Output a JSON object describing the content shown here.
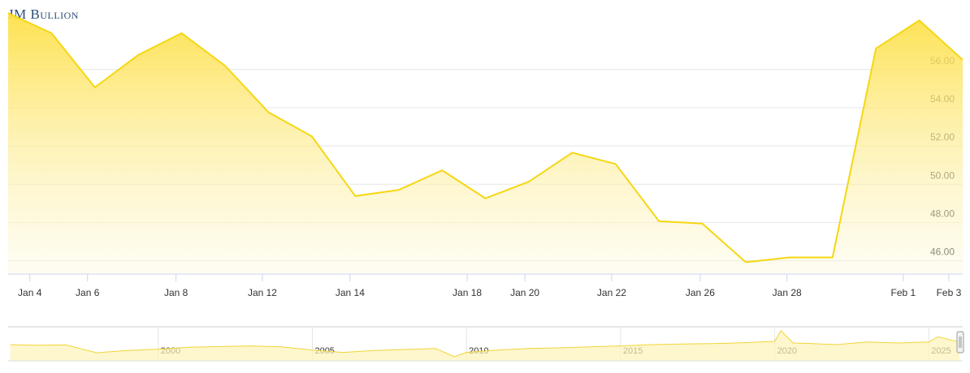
{
  "logo": "JM Bullion",
  "chart_data": [
    {
      "type": "area",
      "color": "#f5d712",
      "grid": true,
      "x": [
        0,
        1,
        2,
        3,
        4,
        5,
        6,
        7,
        8,
        9,
        10,
        11,
        12,
        13,
        14,
        15,
        16,
        17,
        18,
        19,
        20,
        21,
        22
      ],
      "values": [
        58.95,
        57.9,
        55.07,
        56.76,
        57.9,
        56.2,
        53.76,
        52.5,
        49.38,
        49.7,
        50.73,
        49.26,
        50.13,
        51.65,
        51.06,
        48.07,
        47.94,
        45.92,
        46.17,
        46.17,
        57.1,
        58.57,
        56.5
      ],
      "xlim": [
        0,
        22
      ],
      "xticks": [
        {
          "value": 0.5,
          "label": "Jan 4"
        },
        {
          "value": 1.83,
          "label": "Jan 6"
        },
        {
          "value": 3.87,
          "label": "Jan 8"
        },
        {
          "value": 5.86,
          "label": "Jan 12"
        },
        {
          "value": 7.88,
          "label": "Jan 14"
        },
        {
          "value": 10.58,
          "label": "Jan 18"
        },
        {
          "value": 11.91,
          "label": "Jan 20"
        },
        {
          "value": 13.91,
          "label": "Jan 22"
        },
        {
          "value": 15.95,
          "label": "Jan 26"
        },
        {
          "value": 17.95,
          "label": "Jan 28"
        },
        {
          "value": 20.63,
          "label": "Feb 1"
        },
        {
          "value": 21.68,
          "label": "Feb 3"
        }
      ],
      "ylim": [
        45.3,
        59.0
      ],
      "yticks": [
        {
          "value": 46,
          "label": "46.00"
        },
        {
          "value": 48,
          "label": "48.00"
        },
        {
          "value": 50,
          "label": "50.00"
        },
        {
          "value": 52,
          "label": "52.00"
        },
        {
          "value": 54,
          "label": "54.00"
        },
        {
          "value": 56,
          "label": "56.00"
        }
      ]
    },
    {
      "type": "navigator",
      "color": "#f0d43a",
      "x": [
        1995.2,
        1996,
        1997,
        1998,
        1999,
        2000,
        2001,
        2002,
        2003,
        2004,
        2005,
        2006,
        2007,
        2008,
        2009,
        2009.6,
        2010,
        2011,
        2012,
        2013,
        2014,
        2015,
        2016,
        2017,
        2018,
        2019,
        2020,
        2020.2,
        2020.6,
        2021,
        2022,
        2023,
        2024,
        2025,
        2025.3,
        2026
      ],
      "values": [
        5,
        4.8,
        4.9,
        2.5,
        3.2,
        3.6,
        4.2,
        4.4,
        4.6,
        4.3,
        3.3,
        2.6,
        3.2,
        3.5,
        3.8,
        1.3,
        2.6,
        3.3,
        3.8,
        4.0,
        4.3,
        4.6,
        5.0,
        5.2,
        5.3,
        5.6,
        6.0,
        9.3,
        5.5,
        5.4,
        5.0,
        5.8,
        5.5,
        5.8,
        7.4,
        5.8
      ],
      "xlim": [
        1995.13,
        2026.1
      ],
      "xticks": [
        2000,
        2005,
        2010,
        2015,
        2020,
        2025
      ],
      "ylim": [
        0,
        10
      ]
    }
  ]
}
